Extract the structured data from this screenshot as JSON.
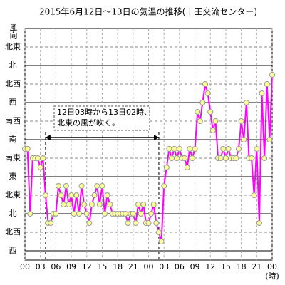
{
  "chart_data": {
    "type": "line",
    "title": "2015年6月12日～13日の気温の推移(十王交流センター)",
    "y_label": "風向",
    "x_unit": "(時)",
    "annotation": {
      "text": [
        "12日03時から13日02時、",
        "北東の風が吹く。"
      ],
      "span": [
        4,
        26
      ]
    },
    "x": [
      0,
      0.5,
      1,
      1.5,
      2,
      2.5,
      3,
      3.5,
      4,
      4.5,
      5,
      5.5,
      6,
      6.5,
      7,
      7.5,
      8,
      8.5,
      9,
      9.5,
      10,
      10.5,
      11,
      11.5,
      12,
      12.5,
      13,
      13.5,
      14,
      14.5,
      15,
      15.5,
      16,
      16.5,
      17,
      17.5,
      18,
      18.5,
      19,
      19.5,
      20,
      20.5,
      21,
      21.5,
      22,
      22.5,
      23,
      23.5,
      24,
      24.5,
      25,
      25.5,
      26,
      26.5,
      27,
      27.5,
      28,
      28.5,
      29,
      29.5,
      30,
      30.5,
      31,
      31.5,
      32,
      32.5,
      33,
      33.5,
      34,
      34.5,
      35,
      35.5,
      36,
      36.5,
      37,
      37.5,
      38,
      38.5,
      39,
      39.5,
      40,
      40.5,
      41,
      41.5,
      42,
      42.5,
      43,
      43.5,
      44,
      44.5,
      45,
      45.5,
      46,
      46.5,
      47,
      47.5,
      48
    ],
    "series": [
      {
        "name": "風向",
        "color": "#ff00ff",
        "values": [
          5.5,
          5.5,
          2,
          5,
          5,
          5,
          4.5,
          5,
          3,
          1.5,
          1.5,
          2,
          2,
          3.5,
          3,
          2.5,
          3.5,
          2.5,
          3,
          2,
          3,
          2,
          3.5,
          2.5,
          2,
          1.5,
          2.5,
          3,
          3.5,
          2.5,
          3.5,
          2,
          3,
          2.5,
          2,
          2,
          2,
          2,
          2,
          2,
          1.5,
          2,
          2,
          1.5,
          2.5,
          2,
          2.5,
          1.5,
          1.5,
          2,
          2.5,
          1.5,
          1,
          0.5,
          3.5,
          4.5,
          5.5,
          5,
          5.5,
          5,
          5.5,
          5,
          5,
          4.5,
          5.5,
          5,
          5.5,
          7.5,
          7,
          8,
          9,
          8.5,
          7.5,
          6.5,
          7,
          5,
          5,
          5.5,
          5,
          5.5,
          5,
          5,
          5,
          5.5,
          7,
          6,
          8,
          5,
          5,
          3,
          5.5,
          1.5,
          8.5,
          5,
          9,
          6,
          9.5
        ]
      }
    ],
    "xlim": [
      0,
      48
    ],
    "ylim": [
      -0.5,
      12
    ],
    "xticks": [
      {
        "value": 0,
        "label": "00"
      },
      {
        "value": 3,
        "label": "03"
      },
      {
        "value": 6,
        "label": "06"
      },
      {
        "value": 9,
        "label": "09"
      },
      {
        "value": 12,
        "label": "12"
      },
      {
        "value": 15,
        "label": "15"
      },
      {
        "value": 18,
        "label": "18"
      },
      {
        "value": 21,
        "label": "21"
      },
      {
        "value": 24,
        "label": "00"
      },
      {
        "value": 27,
        "label": "03"
      },
      {
        "value": 30,
        "label": "06"
      },
      {
        "value": 33,
        "label": "09"
      },
      {
        "value": 36,
        "label": "12"
      },
      {
        "value": 39,
        "label": "15"
      },
      {
        "value": 42,
        "label": "18"
      },
      {
        "value": 45,
        "label": "21"
      },
      {
        "value": 48,
        "label": "00"
      }
    ],
    "yticks": [
      {
        "value": 0,
        "label": "西"
      },
      {
        "value": 1,
        "label": "北西"
      },
      {
        "value": 2,
        "label": "北"
      },
      {
        "value": 3,
        "label": "北東"
      },
      {
        "value": 4,
        "label": "東"
      },
      {
        "value": 5,
        "label": "南東"
      },
      {
        "value": 6,
        "label": "南"
      },
      {
        "value": 7,
        "label": "南西"
      },
      {
        "value": 8,
        "label": "西"
      },
      {
        "value": 9,
        "label": "北西"
      },
      {
        "value": 10,
        "label": "北"
      },
      {
        "value": 11,
        "label": "北東"
      }
    ],
    "grid": true
  }
}
